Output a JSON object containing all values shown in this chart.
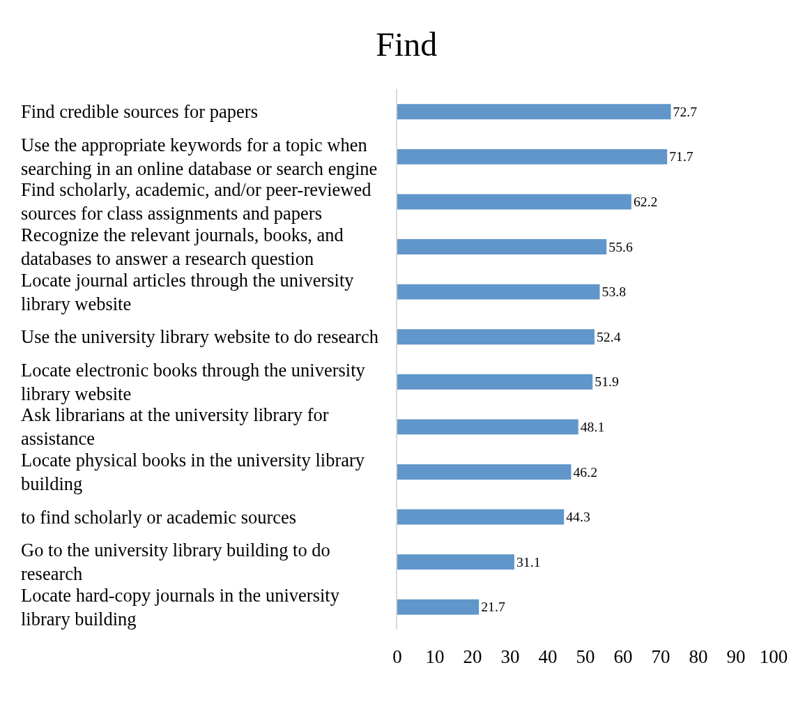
{
  "chart_data": {
    "type": "bar",
    "orientation": "horizontal",
    "title": "Find",
    "categories": [
      "Find credible sources for papers",
      "Use the appropriate keywords for a topic when searching in an online database or search engine",
      "Find scholarly, academic, and/or peer-reviewed sources for class assignments and papers",
      "Recognize the relevant journals, books, and databases to answer a research question",
      "Locate journal articles through the university library website",
      "Use the university library website to do research",
      "Locate electronic books through the university library website",
      "Ask librarians at the university library for assistance",
      "Locate physical books in the university library building",
      "to find scholarly or academic sources",
      "Go to the university library building to do research",
      "Locate hard-copy journals in the university library building"
    ],
    "values": [
      72.7,
      71.7,
      62.2,
      55.6,
      53.8,
      52.4,
      51.9,
      48.1,
      46.2,
      44.3,
      31.1,
      21.7
    ],
    "color": "#6096c9",
    "xlim": [
      0,
      100
    ],
    "xticks": [
      0,
      10,
      20,
      30,
      40,
      50,
      60,
      70,
      80,
      90,
      100
    ],
    "data_labels": true
  }
}
